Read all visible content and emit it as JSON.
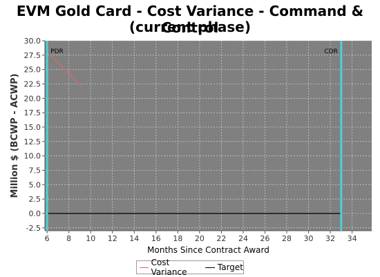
{
  "chart_data": {
    "type": "line",
    "title_line1": "EVM Gold Card - Cost Variance - Command & Control",
    "title_line2": "(current phase)",
    "xlabel": "Months Since Contract Award",
    "ylabel": "Million $ (BCWP - ACWP)",
    "xlim": [
      5.8,
      35.8
    ],
    "ylim": [
      -3.0,
      30.0
    ],
    "x_ticks": [
      6,
      8,
      10,
      12,
      14,
      16,
      18,
      20,
      22,
      24,
      26,
      28,
      30,
      32,
      34
    ],
    "y_ticks": [
      -2.5,
      0.0,
      2.5,
      5.0,
      7.5,
      10.0,
      12.5,
      15.0,
      17.5,
      20.0,
      22.5,
      25.0,
      27.5,
      30.0
    ],
    "grid": true,
    "legend_position": "bottom-center",
    "series": [
      {
        "name": "Cost Variance",
        "color": "#e06666",
        "x": [
          6.3,
          9.2
        ],
        "y": [
          27.5,
          22.0
        ]
      },
      {
        "name": "Target",
        "color": "#000000",
        "x": [
          6.0,
          33.0
        ],
        "y": [
          0.0,
          0.0
        ]
      }
    ],
    "milestones": [
      {
        "label": "PDR",
        "x": 6.0
      },
      {
        "label": "CDR",
        "x": 33.0
      }
    ],
    "colors": {
      "plot_bg": "#808080",
      "grid": "#c8c8c8",
      "milestone": "#4dd0d8"
    }
  }
}
